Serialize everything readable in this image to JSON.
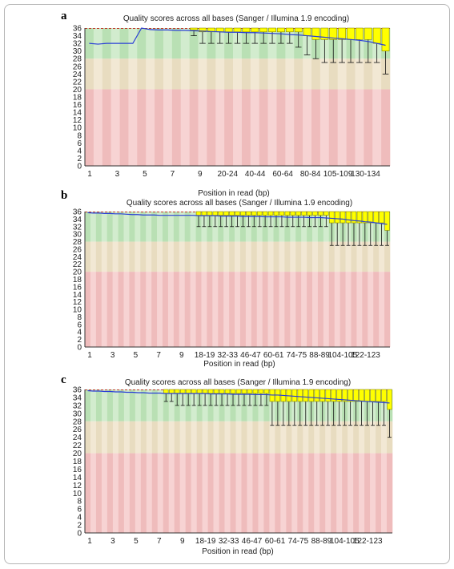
{
  "figure": {
    "panels": [
      {
        "letter": "a",
        "title": "Quality scores across all bases (Sanger / Illumina 1.9 encoding)",
        "xlabel": "Position in read (bp)"
      },
      {
        "letter": "b",
        "title": "Quality scores across all bases (Sanger / Illumina 1.9 encoding)",
        "xlabel": "Position in read (bp)"
      },
      {
        "letter": "c",
        "title": "Quality scores across all bases (Sanger / Illumina 1.9 encoding)",
        "xlabel": "Position in read (bp)"
      }
    ]
  },
  "colors": {
    "good_zone": [
      "#b9e0b4",
      "#d2ecce"
    ],
    "medium_zone": [
      "#e8dcc0",
      "#f2e8d4"
    ],
    "poor_zone": [
      "#efbcbc",
      "#f7d3d3"
    ],
    "box_fill": "#ffff00",
    "box_stroke": "#8a8a00",
    "mean_line": "#2a3fd6",
    "median_mark": "#d40000"
  },
  "chart_data": [
    {
      "type": "box",
      "title": "Quality scores across all bases (Sanger / Illumina 1.9 encoding)",
      "xlabel": "Position in read (bp)",
      "ylim": [
        0,
        36
      ],
      "yticks": [
        0,
        2,
        4,
        6,
        8,
        10,
        12,
        14,
        16,
        18,
        20,
        22,
        24,
        26,
        28,
        30,
        32,
        34,
        36
      ],
      "zones": {
        "good": [
          28,
          36
        ],
        "medium": [
          20,
          28
        ],
        "poor": [
          0,
          20
        ]
      },
      "x_tick_labels": [
        "1",
        "3",
        "5",
        "7",
        "9",
        "20-24",
        "40-44",
        "60-64",
        "80-84",
        "105-109",
        "130-134"
      ],
      "series": [
        {
          "name": "mean",
          "values": [
            32,
            31.8,
            32,
            32,
            32,
            32,
            36,
            35.6,
            35.5,
            35.5,
            35.4,
            35.4,
            35.3,
            35.2,
            35.1,
            35,
            34.9,
            34.9,
            34.8,
            34.8,
            34.7,
            34.6,
            34.5,
            34.3,
            34.2,
            34,
            33.8,
            33.6,
            33.4,
            33.2,
            33,
            32.8,
            32.5,
            32,
            31.5
          ]
        },
        {
          "name": "lower_quartile",
          "values": [
            32,
            31.8,
            32,
            32,
            32,
            32,
            36,
            36,
            36,
            36,
            36,
            36,
            35.5,
            35,
            35,
            35,
            35,
            35,
            35,
            35,
            35,
            35,
            35,
            35,
            35,
            34,
            33,
            33,
            33,
            33,
            33,
            33,
            33,
            32,
            30
          ]
        },
        {
          "name": "upper_quartile",
          "values": [
            32,
            31.8,
            32,
            32,
            32,
            32,
            36,
            36,
            36,
            36,
            36,
            36,
            36,
            36,
            36,
            36,
            36,
            36,
            36,
            36,
            36,
            36,
            36,
            36,
            36,
            36,
            36,
            36,
            36,
            36,
            36,
            36,
            36,
            36,
            36
          ]
        },
        {
          "name": "p10",
          "values": [
            32,
            31.8,
            32,
            32,
            32,
            32,
            36,
            36,
            36,
            36,
            36,
            36,
            34,
            32,
            32,
            32,
            32,
            32,
            32,
            32,
            32,
            32,
            32,
            32,
            31,
            29,
            28,
            27,
            27,
            27,
            27,
            27,
            27,
            27,
            24
          ]
        },
        {
          "name": "p90",
          "values": [
            32,
            31.8,
            32,
            32,
            32,
            32,
            36,
            36,
            36,
            36,
            36,
            36,
            36,
            36,
            36,
            36,
            36,
            36,
            36,
            36,
            36,
            36,
            36,
            36,
            36,
            36,
            36,
            36,
            36,
            36,
            36,
            36,
            36,
            36,
            36
          ]
        }
      ]
    },
    {
      "type": "box",
      "title": "Quality scores across all bases (Sanger / Illumina 1.9 encoding)",
      "xlabel": "Position in read (bp)",
      "ylim": [
        0,
        36
      ],
      "yticks": [
        0,
        2,
        4,
        6,
        8,
        10,
        12,
        14,
        16,
        18,
        20,
        22,
        24,
        26,
        28,
        30,
        32,
        34,
        36
      ],
      "zones": {
        "good": [
          28,
          36
        ],
        "medium": [
          20,
          28
        ],
        "poor": [
          0,
          20
        ]
      },
      "x_tick_labels": [
        "1",
        "3",
        "5",
        "7",
        "9",
        "18-19",
        "32-33",
        "46-47",
        "60-61",
        "74-75",
        "88-89",
        "104-105",
        "122-123"
      ],
      "series": [
        {
          "name": "mean",
          "values": [
            35.7,
            35.6,
            35.6,
            35.5,
            35.5,
            35.4,
            35.4,
            35.3,
            35.2,
            35.2,
            35.1,
            35.1,
            35.1,
            35,
            35,
            35,
            35,
            35,
            35,
            35,
            34.9,
            34.9,
            34.9,
            34.9,
            34.8,
            34.8,
            34.8,
            34.8,
            34.7,
            34.7,
            34.7,
            34.7,
            34.6,
            34.6,
            34.6,
            34.6,
            34.5,
            34.5,
            34.5,
            34.5,
            34.4,
            34.4,
            34.4,
            34.3,
            34.2,
            34.1,
            34,
            33.8,
            33.6,
            33.5,
            33.3,
            33.2,
            33,
            32.8,
            32.6
          ]
        },
        {
          "name": "lower_quartile",
          "values": [
            36,
            36,
            36,
            36,
            36,
            36,
            36,
            36,
            36,
            36,
            36,
            36,
            36,
            36,
            36,
            36,
            36,
            36,
            36,
            36,
            35,
            35,
            35,
            35,
            35,
            35,
            35,
            35,
            35,
            35,
            35,
            35,
            35,
            35,
            35,
            35,
            35,
            35,
            35,
            35,
            35,
            35,
            35,
            35,
            33,
            33,
            33,
            33,
            33,
            33,
            33,
            33,
            33,
            33,
            31
          ]
        },
        {
          "name": "upper_quartile",
          "values": [
            36,
            36,
            36,
            36,
            36,
            36,
            36,
            36,
            36,
            36,
            36,
            36,
            36,
            36,
            36,
            36,
            36,
            36,
            36,
            36,
            36,
            36,
            36,
            36,
            36,
            36,
            36,
            36,
            36,
            36,
            36,
            36,
            36,
            36,
            36,
            36,
            36,
            36,
            36,
            36,
            36,
            36,
            36,
            36,
            36,
            36,
            36,
            36,
            36,
            36,
            36,
            36,
            36,
            36,
            36
          ]
        },
        {
          "name": "p10",
          "values": [
            36,
            36,
            36,
            36,
            36,
            36,
            36,
            36,
            36,
            36,
            36,
            36,
            36,
            36,
            36,
            36,
            36,
            36,
            36,
            36,
            32,
            32,
            32,
            32,
            32,
            32,
            32,
            32,
            32,
            32,
            32,
            32,
            32,
            32,
            32,
            32,
            32,
            32,
            32,
            32,
            32,
            32,
            32,
            32,
            27,
            27,
            27,
            27,
            27,
            27,
            27,
            27,
            27,
            27,
            27
          ]
        },
        {
          "name": "p90",
          "values": [
            36,
            36,
            36,
            36,
            36,
            36,
            36,
            36,
            36,
            36,
            36,
            36,
            36,
            36,
            36,
            36,
            36,
            36,
            36,
            36,
            36,
            36,
            36,
            36,
            36,
            36,
            36,
            36,
            36,
            36,
            36,
            36,
            36,
            36,
            36,
            36,
            36,
            36,
            36,
            36,
            36,
            36,
            36,
            36,
            36,
            36,
            36,
            36,
            36,
            36,
            36,
            36,
            36,
            36,
            36
          ]
        }
      ]
    },
    {
      "type": "box",
      "title": "Quality scores across all bases (Sanger / Illumina 1.9 encoding)",
      "xlabel": "Position in read (bp)",
      "ylim": [
        0,
        36
      ],
      "yticks": [
        0,
        2,
        4,
        6,
        8,
        10,
        12,
        14,
        16,
        18,
        20,
        22,
        24,
        26,
        28,
        30,
        32,
        34,
        36
      ],
      "zones": {
        "good": [
          28,
          36
        ],
        "medium": [
          20,
          28
        ],
        "poor": [
          0,
          20
        ]
      },
      "x_tick_labels": [
        "1",
        "3",
        "5",
        "7",
        "9",
        "18-19",
        "32-33",
        "46-47",
        "60-61",
        "74-75",
        "88-89",
        "104-105",
        "122-123"
      ],
      "series": [
        {
          "name": "mean",
          "values": [
            35.7,
            35.6,
            35.6,
            35.5,
            35.5,
            35.4,
            35.4,
            35.3,
            35.3,
            35.2,
            35.2,
            35.1,
            35.1,
            35.1,
            35,
            35,
            35,
            35,
            35,
            35,
            35,
            35,
            34.9,
            34.9,
            34.9,
            34.9,
            34.8,
            34.8,
            34.8,
            34.8,
            34.7,
            34.7,
            34.7,
            34.6,
            34.6,
            34.5,
            34.4,
            34.3,
            34.2,
            34.1,
            34,
            33.9,
            33.8,
            33.7,
            33.6,
            33.5,
            33.4,
            33.3,
            33.2,
            33.1,
            33,
            32.9,
            32.8,
            32.7,
            32.6
          ]
        },
        {
          "name": "lower_quartile",
          "values": [
            36,
            36,
            36,
            36,
            36,
            36,
            36,
            36,
            36,
            36,
            36,
            36,
            36,
            36,
            35,
            35,
            35,
            35,
            35,
            35,
            35,
            35,
            35,
            35,
            35,
            35,
            35,
            35,
            35,
            35,
            35,
            35,
            35,
            33,
            33,
            33,
            33,
            33,
            33,
            33,
            33,
            33,
            33,
            33,
            33,
            33,
            33,
            33,
            33,
            33,
            33,
            33,
            33,
            33,
            31
          ]
        },
        {
          "name": "upper_quartile",
          "values": [
            36,
            36,
            36,
            36,
            36,
            36,
            36,
            36,
            36,
            36,
            36,
            36,
            36,
            36,
            36,
            36,
            36,
            36,
            36,
            36,
            36,
            36,
            36,
            36,
            36,
            36,
            36,
            36,
            36,
            36,
            36,
            36,
            36,
            36,
            36,
            36,
            36,
            36,
            36,
            36,
            36,
            36,
            36,
            36,
            36,
            36,
            36,
            36,
            36,
            36,
            36,
            36,
            36,
            36,
            36
          ]
        },
        {
          "name": "p10",
          "values": [
            36,
            36,
            36,
            36,
            36,
            36,
            36,
            36,
            36,
            36,
            36,
            36,
            36,
            36,
            33,
            33,
            32,
            32,
            32,
            32,
            32,
            32,
            32,
            32,
            32,
            32,
            32,
            32,
            32,
            32,
            32,
            32,
            32,
            27,
            27,
            27,
            27,
            27,
            27,
            27,
            27,
            27,
            27,
            27,
            27,
            27,
            27,
            27,
            27,
            27,
            27,
            27,
            27,
            27,
            24
          ]
        },
        {
          "name": "p90",
          "values": [
            36,
            36,
            36,
            36,
            36,
            36,
            36,
            36,
            36,
            36,
            36,
            36,
            36,
            36,
            36,
            36,
            36,
            36,
            36,
            36,
            36,
            36,
            36,
            36,
            36,
            36,
            36,
            36,
            36,
            36,
            36,
            36,
            36,
            36,
            36,
            36,
            36,
            36,
            36,
            36,
            36,
            36,
            36,
            36,
            36,
            36,
            36,
            36,
            36,
            36,
            36,
            36,
            36,
            36,
            36
          ]
        }
      ]
    }
  ]
}
